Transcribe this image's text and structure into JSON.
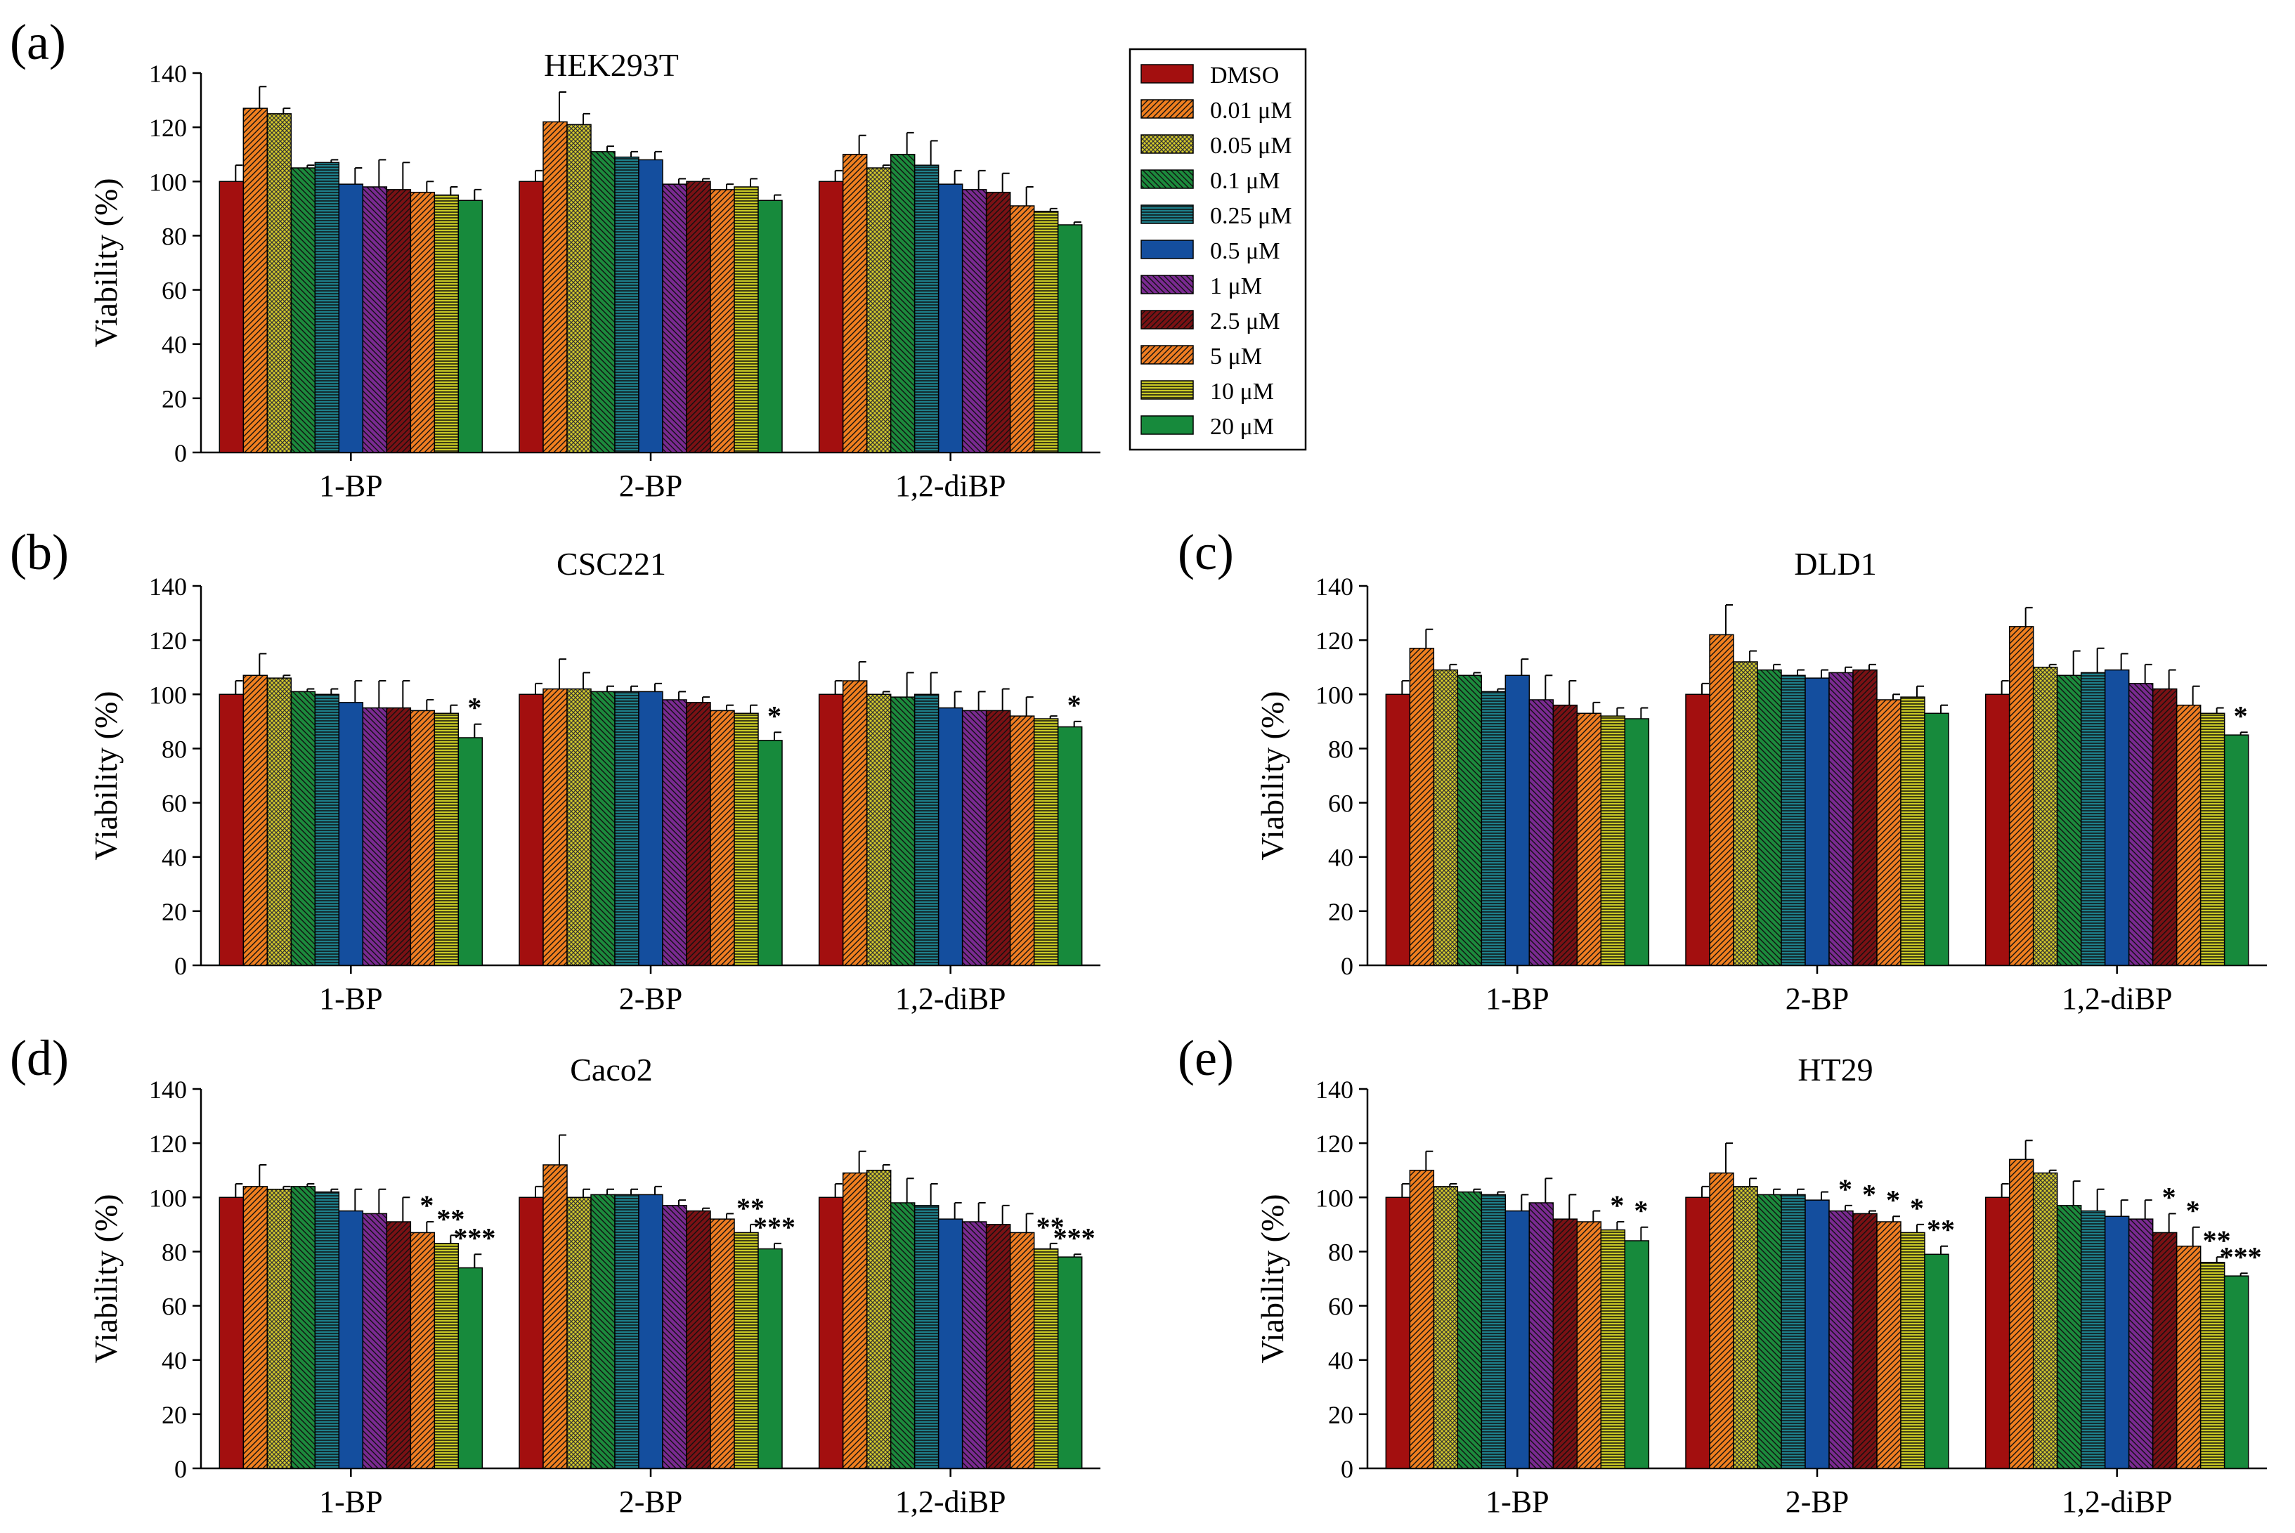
{
  "figure": {
    "legend_entries": [
      "DMSO",
      "0.01 μM",
      "0.05 μM",
      "0.1 μM",
      "0.25 μM",
      "0.5 μM",
      "1 μM",
      "2.5 μM",
      "5 μM",
      "10 μM",
      "20 μM"
    ],
    "series_colors": [
      "#a30f0f",
      "#f07f1f",
      "#d6cc2a",
      "#1c8a3c",
      "#1e7f8a",
      "#144e9e",
      "#7a2a91",
      "#7a1114",
      "#ef7d22",
      "#c8c825",
      "#178a3c"
    ],
    "series_patterns": [
      "solid",
      "diag-r",
      "check",
      "diag-l",
      "horiz",
      "solid",
      "diag-l",
      "diag-r",
      "diag-r2",
      "horiz",
      "solid"
    ]
  },
  "chart_data": [
    {
      "panel": "(a)",
      "type": "bar",
      "title": "HEK293T",
      "ylabel": "Viability (%)",
      "xlabel": "",
      "ylim": [
        0,
        140
      ],
      "yticks": [
        "0",
        "20",
        "40",
        "60",
        "80",
        "100",
        "120",
        "140"
      ],
      "categories": [
        "1-BP",
        "2-BP",
        "1,2-diBP"
      ],
      "series": [
        {
          "name": "DMSO",
          "values": [
            100,
            100,
            100
          ],
          "errors": [
            6,
            4,
            4
          ]
        },
        {
          "name": "0.01 μM",
          "values": [
            127,
            122,
            110
          ],
          "errors": [
            8,
            11,
            7
          ]
        },
        {
          "name": "0.05 μM",
          "values": [
            125,
            121,
            105
          ],
          "errors": [
            2,
            4,
            1
          ]
        },
        {
          "name": "0.1 μM",
          "values": [
            105,
            111,
            110
          ],
          "errors": [
            1,
            2,
            8
          ]
        },
        {
          "name": "0.25 μM",
          "values": [
            107,
            109,
            106
          ],
          "errors": [
            1,
            2,
            9
          ]
        },
        {
          "name": "0.5 μM",
          "values": [
            99,
            108,
            99
          ],
          "errors": [
            6,
            3,
            5
          ]
        },
        {
          "name": "1 μM",
          "values": [
            98,
            99,
            97
          ],
          "errors": [
            10,
            2,
            7
          ]
        },
        {
          "name": "2.5 μM",
          "values": [
            97,
            100,
            96
          ],
          "errors": [
            10,
            1,
            7
          ]
        },
        {
          "name": "5 μM",
          "values": [
            96,
            97,
            91
          ],
          "errors": [
            4,
            2,
            7
          ]
        },
        {
          "name": "10 μM",
          "values": [
            95,
            98,
            89
          ],
          "errors": [
            3,
            3,
            1
          ]
        },
        {
          "name": "20 μM",
          "values": [
            93,
            93,
            84
          ],
          "errors": [
            4,
            2,
            1
          ]
        }
      ],
      "annotations": [],
      "legend": "top-right"
    },
    {
      "panel": "(b)",
      "type": "bar",
      "title": "CSC221",
      "ylabel": "Viability (%)",
      "xlabel": "",
      "ylim": [
        0,
        140
      ],
      "yticks": [
        "0",
        "20",
        "40",
        "60",
        "80",
        "100",
        "120",
        "140"
      ],
      "categories": [
        "1-BP",
        "2-BP",
        "1,2-diBP"
      ],
      "series": [
        {
          "name": "DMSO",
          "values": [
            100,
            100,
            100
          ],
          "errors": [
            5,
            4,
            5
          ]
        },
        {
          "name": "0.01 μM",
          "values": [
            107,
            102,
            105
          ],
          "errors": [
            8,
            11,
            7
          ]
        },
        {
          "name": "0.05 μM",
          "values": [
            106,
            102,
            100
          ],
          "errors": [
            1,
            6,
            1
          ]
        },
        {
          "name": "0.1 μM",
          "values": [
            101,
            101,
            99
          ],
          "errors": [
            1,
            2,
            9
          ]
        },
        {
          "name": "0.25 μM",
          "values": [
            100,
            101,
            100
          ],
          "errors": [
            2,
            2,
            8
          ]
        },
        {
          "name": "0.5 μM",
          "values": [
            97,
            101,
            95
          ],
          "errors": [
            8,
            3,
            6
          ]
        },
        {
          "name": "1 μM",
          "values": [
            95,
            98,
            94
          ],
          "errors": [
            10,
            3,
            7
          ]
        },
        {
          "name": "2.5 μM",
          "values": [
            95,
            97,
            94
          ],
          "errors": [
            10,
            2,
            8
          ]
        },
        {
          "name": "5 μM",
          "values": [
            94,
            94,
            92
          ],
          "errors": [
            4,
            2,
            7
          ]
        },
        {
          "name": "10 μM",
          "values": [
            93,
            93,
            91
          ],
          "errors": [
            3,
            3,
            1
          ]
        },
        {
          "name": "20 μM",
          "values": [
            84,
            83,
            88
          ],
          "errors": [
            5,
            3,
            2
          ]
        }
      ],
      "annotations": [
        {
          "category": 0,
          "series": 10,
          "text": "*"
        },
        {
          "category": 1,
          "series": 10,
          "text": "*"
        },
        {
          "category": 2,
          "series": 10,
          "text": "*"
        }
      ]
    },
    {
      "panel": "(c)",
      "type": "bar",
      "title": "DLD1",
      "ylabel": "Viability (%)",
      "xlabel": "",
      "ylim": [
        0,
        140
      ],
      "yticks": [
        "0",
        "20",
        "40",
        "60",
        "80",
        "100",
        "120",
        "140"
      ],
      "categories": [
        "1-BP",
        "2-BP",
        "1,2-diBP"
      ],
      "series": [
        {
          "name": "DMSO",
          "values": [
            100,
            100,
            100
          ],
          "errors": [
            5,
            4,
            5
          ]
        },
        {
          "name": "0.01 μM",
          "values": [
            117,
            122,
            125
          ],
          "errors": [
            7,
            11,
            7
          ]
        },
        {
          "name": "0.05 μM",
          "values": [
            109,
            112,
            110
          ],
          "errors": [
            2,
            4,
            1
          ]
        },
        {
          "name": "0.1 μM",
          "values": [
            107,
            109,
            107
          ],
          "errors": [
            1,
            2,
            9
          ]
        },
        {
          "name": "0.25 μM",
          "values": [
            101,
            107,
            108
          ],
          "errors": [
            1,
            2,
            9
          ]
        },
        {
          "name": "0.5 μM",
          "values": [
            107,
            106,
            109
          ],
          "errors": [
            6,
            3,
            6
          ]
        },
        {
          "name": "1 μM",
          "values": [
            98,
            108,
            104
          ],
          "errors": [
            9,
            2,
            7
          ]
        },
        {
          "name": "2.5 μM",
          "values": [
            96,
            109,
            102
          ],
          "errors": [
            9,
            2,
            7
          ]
        },
        {
          "name": "5 μM",
          "values": [
            93,
            98,
            96
          ],
          "errors": [
            4,
            2,
            7
          ]
        },
        {
          "name": "10 μM",
          "values": [
            92,
            99,
            93
          ],
          "errors": [
            3,
            4,
            2
          ]
        },
        {
          "name": "20 μM",
          "values": [
            91,
            93,
            85
          ],
          "errors": [
            4,
            3,
            1
          ]
        }
      ],
      "annotations": [
        {
          "category": 2,
          "series": 10,
          "text": "*"
        }
      ]
    },
    {
      "panel": "(d)",
      "type": "bar",
      "title": "Caco2",
      "ylabel": "Viability (%)",
      "xlabel": "",
      "ylim": [
        0,
        140
      ],
      "yticks": [
        "0",
        "20",
        "40",
        "60",
        "80",
        "100",
        "120",
        "140"
      ],
      "categories": [
        "1-BP",
        "2-BP",
        "1,2-diBP"
      ],
      "series": [
        {
          "name": "DMSO",
          "values": [
            100,
            100,
            100
          ],
          "errors": [
            5,
            4,
            5
          ]
        },
        {
          "name": "0.01 μM",
          "values": [
            104,
            112,
            109
          ],
          "errors": [
            8,
            11,
            8
          ]
        },
        {
          "name": "0.05 μM",
          "values": [
            103,
            100,
            110
          ],
          "errors": [
            1,
            3,
            2
          ]
        },
        {
          "name": "0.1 μM",
          "values": [
            104,
            101,
            98
          ],
          "errors": [
            1,
            2,
            9
          ]
        },
        {
          "name": "0.25 μM",
          "values": [
            102,
            101,
            97
          ],
          "errors": [
            1,
            2,
            8
          ]
        },
        {
          "name": "0.5 μM",
          "values": [
            95,
            101,
            92
          ],
          "errors": [
            8,
            3,
            6
          ]
        },
        {
          "name": "1 μM",
          "values": [
            94,
            97,
            91
          ],
          "errors": [
            9,
            2,
            7
          ]
        },
        {
          "name": "2.5 μM",
          "values": [
            91,
            95,
            90
          ],
          "errors": [
            9,
            1,
            7
          ]
        },
        {
          "name": "5 μM",
          "values": [
            87,
            92,
            87
          ],
          "errors": [
            4,
            2,
            7
          ]
        },
        {
          "name": "10 μM",
          "values": [
            83,
            87,
            81
          ],
          "errors": [
            3,
            3,
            2
          ]
        },
        {
          "name": "20 μM",
          "values": [
            74,
            81,
            78
          ],
          "errors": [
            5,
            2,
            1
          ]
        }
      ],
      "annotations": [
        {
          "category": 0,
          "series": 8,
          "text": "*"
        },
        {
          "category": 0,
          "series": 9,
          "text": "**"
        },
        {
          "category": 0,
          "series": 10,
          "text": "***"
        },
        {
          "category": 1,
          "series": 9,
          "text": "**"
        },
        {
          "category": 1,
          "series": 10,
          "text": "***"
        },
        {
          "category": 2,
          "series": 9,
          "text": "**"
        },
        {
          "category": 2,
          "series": 10,
          "text": "***"
        }
      ]
    },
    {
      "panel": "(e)",
      "type": "bar",
      "title": "HT29",
      "ylabel": "Viability (%)",
      "xlabel": "",
      "ylim": [
        0,
        140
      ],
      "yticks": [
        "0",
        "20",
        "40",
        "60",
        "80",
        "100",
        "120",
        "140"
      ],
      "categories": [
        "1-BP",
        "2-BP",
        "1,2-diBP"
      ],
      "series": [
        {
          "name": "DMSO",
          "values": [
            100,
            100,
            100
          ],
          "errors": [
            5,
            4,
            5
          ]
        },
        {
          "name": "0.01 μM",
          "values": [
            110,
            109,
            114
          ],
          "errors": [
            7,
            11,
            7
          ]
        },
        {
          "name": "0.05 μM",
          "values": [
            104,
            104,
            109
          ],
          "errors": [
            1,
            3,
            1
          ]
        },
        {
          "name": "0.1 μM",
          "values": [
            102,
            101,
            97
          ],
          "errors": [
            1,
            2,
            9
          ]
        },
        {
          "name": "0.25 μM",
          "values": [
            101,
            101,
            95
          ],
          "errors": [
            1,
            2,
            8
          ]
        },
        {
          "name": "0.5 μM",
          "values": [
            95,
            99,
            93
          ],
          "errors": [
            6,
            3,
            6
          ]
        },
        {
          "name": "1 μM",
          "values": [
            98,
            95,
            92
          ],
          "errors": [
            9,
            2,
            7
          ]
        },
        {
          "name": "2.5 μM",
          "values": [
            92,
            94,
            87
          ],
          "errors": [
            9,
            1,
            7
          ]
        },
        {
          "name": "5 μM",
          "values": [
            91,
            91,
            82
          ],
          "errors": [
            4,
            2,
            7
          ]
        },
        {
          "name": "10 μM",
          "values": [
            88,
            87,
            76
          ],
          "errors": [
            3,
            3,
            2
          ]
        },
        {
          "name": "20 μM",
          "values": [
            84,
            79,
            71
          ],
          "errors": [
            5,
            3,
            1
          ]
        }
      ],
      "annotations": [
        {
          "category": 0,
          "series": 9,
          "text": "*"
        },
        {
          "category": 0,
          "series": 10,
          "text": "*"
        },
        {
          "category": 1,
          "series": 6,
          "text": "*"
        },
        {
          "category": 1,
          "series": 7,
          "text": "*"
        },
        {
          "category": 1,
          "series": 8,
          "text": "*"
        },
        {
          "category": 1,
          "series": 9,
          "text": "*"
        },
        {
          "category": 1,
          "series": 10,
          "text": "**"
        },
        {
          "category": 2,
          "series": 7,
          "text": "*"
        },
        {
          "category": 2,
          "series": 8,
          "text": "*"
        },
        {
          "category": 2,
          "series": 9,
          "text": "**"
        },
        {
          "category": 2,
          "series": 10,
          "text": "***"
        }
      ]
    }
  ]
}
